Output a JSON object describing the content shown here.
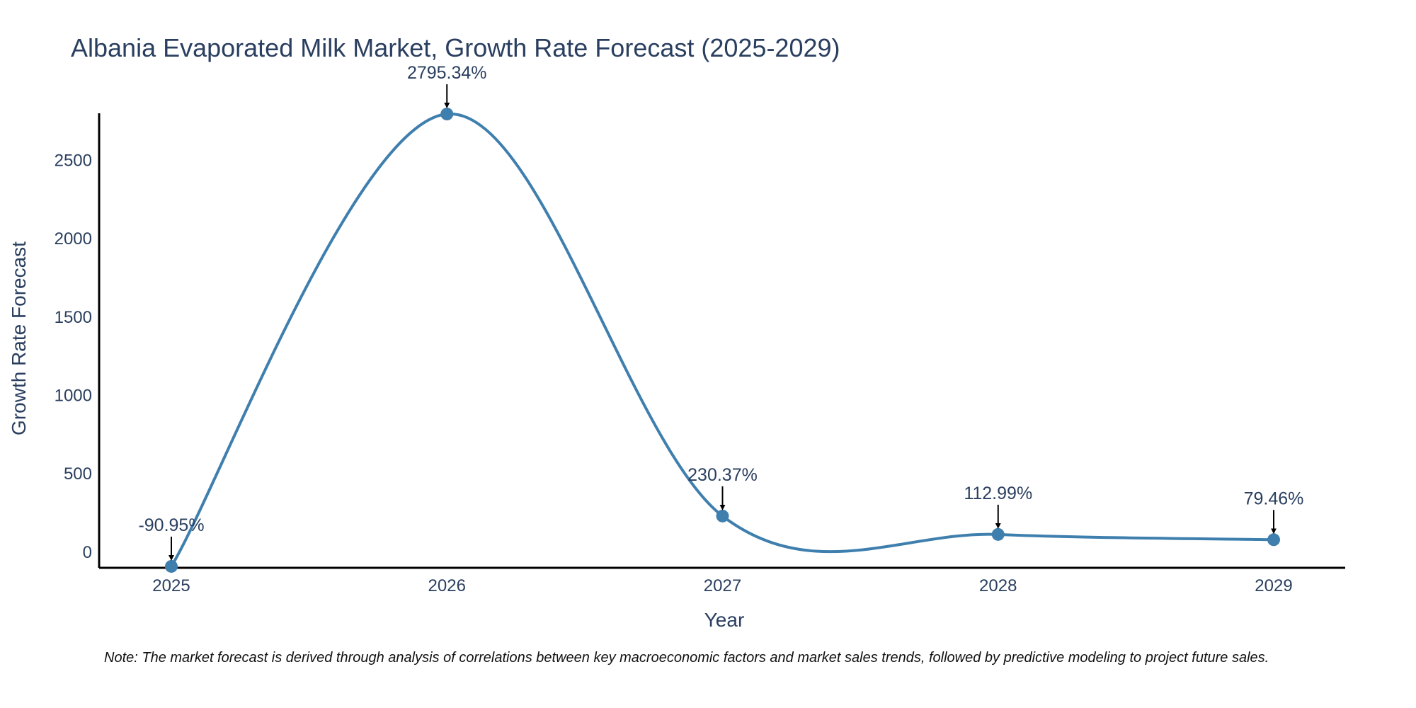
{
  "chart_data": {
    "type": "line",
    "title": "Albania Evaporated Milk Market, Growth Rate Forecast (2025-2029)",
    "xlabel": "Year",
    "ylabel": "Growth Rate Forecast",
    "categories": [
      "2025",
      "2026",
      "2027",
      "2028",
      "2029"
    ],
    "values": [
      -90.95,
      2795.34,
      230.37,
      112.99,
      79.46
    ],
    "labels": [
      "-90.95%",
      "2795.34%",
      "230.37%",
      "112.99%",
      "79.46%"
    ],
    "y_ticks": [
      0,
      500,
      1000,
      1500,
      2000,
      2500
    ],
    "ylim": [
      -100,
      2800
    ],
    "line_color": "#3f7fae",
    "smoothing": "spline"
  },
  "note": "Note: The market forecast is derived through analysis of correlations between key macroeconomic factors and market sales trends, followed by predictive modeling to project future sales."
}
